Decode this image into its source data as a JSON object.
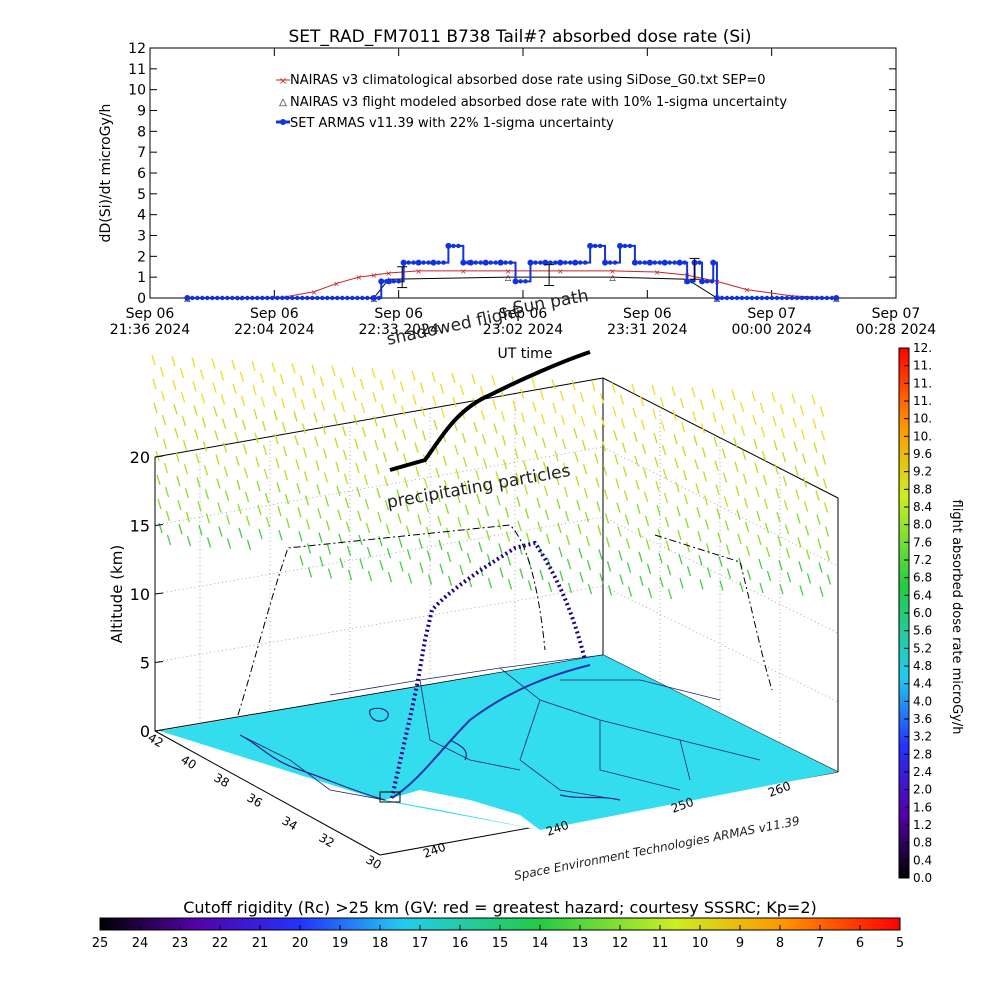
{
  "chart_data": [
    {
      "type": "line",
      "title": "SET_RAD_FM7011  B738 Tail#? absorbed dose rate (Si)",
      "xlabel": "UT time",
      "ylabel": "dD(Si)/dt microGy/h",
      "ylim": [
        0,
        12
      ],
      "yticks": [
        "0",
        "1",
        "2",
        "3",
        "4",
        "5",
        "6",
        "7",
        "8",
        "9",
        "10",
        "11",
        "12"
      ],
      "xticks": [
        {
          "day": "Sep 06",
          "time": "21:36 2024"
        },
        {
          "day": "Sep 06",
          "time": "22:04 2024"
        },
        {
          "day": "Sep 06",
          "time": "22:33 2024"
        },
        {
          "day": "Sep 06",
          "time": "23:02 2024"
        },
        {
          "day": "Sep 06",
          "time": "23:31 2024"
        },
        {
          "day": "Sep 07",
          "time": "00:00 2024"
        },
        {
          "day": "Sep 07",
          "time": "00:28 2024"
        }
      ],
      "legend_placement": "top-center",
      "series": [
        {
          "name": "NAIRAS v3 climatological absorbed dose rate using SiDose_G0.txt SEP=0",
          "color": "#cc2222",
          "x": [
            0.05,
            0.12,
            0.18,
            0.22,
            0.25,
            0.28,
            0.3,
            0.32,
            0.36,
            0.42,
            0.48,
            0.55,
            0.62,
            0.68,
            0.72,
            0.76,
            0.8,
            0.86,
            0.92
          ],
          "values": [
            0,
            0,
            0.05,
            0.3,
            0.7,
            1.0,
            1.1,
            1.2,
            1.3,
            1.3,
            1.3,
            1.3,
            1.3,
            1.25,
            1.1,
            0.8,
            0.4,
            0.1,
            0
          ]
        },
        {
          "name": "NAIRAS v3 flight modeled absorbed dose rate with 10% 1-sigma uncertainty",
          "color": "#000000",
          "x": [
            0.05,
            0.3,
            0.32,
            0.48,
            0.62,
            0.72,
            0.76,
            0.92
          ],
          "values": [
            0,
            0,
            0.9,
            1.0,
            1.0,
            0.9,
            0,
            0
          ]
        },
        {
          "name": "SET ARMAS v11.39 with 22% 1-sigma uncertainty",
          "color": "#1133dd",
          "x": [
            0.05,
            0.3,
            0.31,
            0.32,
            0.34,
            0.36,
            0.38,
            0.4,
            0.42,
            0.43,
            0.45,
            0.47,
            0.49,
            0.51,
            0.53,
            0.55,
            0.57,
            0.59,
            0.61,
            0.63,
            0.65,
            0.67,
            0.69,
            0.71,
            0.72,
            0.73,
            0.74,
            0.755,
            0.76,
            0.92
          ],
          "values": [
            0,
            0,
            0.8,
            0.8,
            1.7,
            1.7,
            1.7,
            2.5,
            1.7,
            1.7,
            1.7,
            1.7,
            0.8,
            1.7,
            1.7,
            1.7,
            1.7,
            2.5,
            1.7,
            2.5,
            1.7,
            1.7,
            1.7,
            1.7,
            0.8,
            1.7,
            0.8,
            1.7,
            0,
            0
          ]
        }
      ]
    },
    {
      "type": "scatter",
      "subtype": "3d-flight-track",
      "zlabel": "Altitude (km)",
      "zticks": [
        "0",
        "5",
        "10",
        "15",
        "20"
      ],
      "lat_ticks": [
        "42",
        "40",
        "38",
        "36",
        "34",
        "32",
        "30"
      ],
      "lon_ticks": [
        "240",
        "240",
        "250",
        "260"
      ],
      "annotations": [
        "Sun path",
        "shadowed flight",
        "precipitating particles",
        "Space Environment Technologies ARMAS v11.39"
      ],
      "colorbar": {
        "label": "flight absorbed dose rate microGy/h",
        "ticks": [
          "0.0",
          "0.4",
          "0.8",
          "1.2",
          "1.6",
          "2.0",
          "2.4",
          "2.8",
          "3.2",
          "3.6",
          "4.0",
          "4.4",
          "4.8",
          "5.2",
          "5.6",
          "6.0",
          "6.4",
          "6.8",
          "7.2",
          "7.6",
          "8.0",
          "8.4",
          "8.8",
          "9.2",
          "9.6",
          "10.",
          "10.",
          "11.",
          "11.",
          "11.",
          "12."
        ]
      }
    },
    {
      "type": "heatmap",
      "subtype": "colorbar",
      "title": "Cutoff rigidity (Rc) >25 km (GV: red = greatest hazard; courtesy SSSRC; Kp=2)",
      "ticks": [
        "25",
        "24",
        "23",
        "22",
        "21",
        "20",
        "19",
        "18",
        "17",
        "16",
        "15",
        "14",
        "13",
        "12",
        "11",
        "10",
        "9",
        "8",
        "7",
        "6",
        "5"
      ]
    }
  ],
  "colors": {
    "map_fill": "#33ddee",
    "track": "#220088",
    "armas": "#1133dd",
    "nairas_clim": "#cc2222"
  }
}
